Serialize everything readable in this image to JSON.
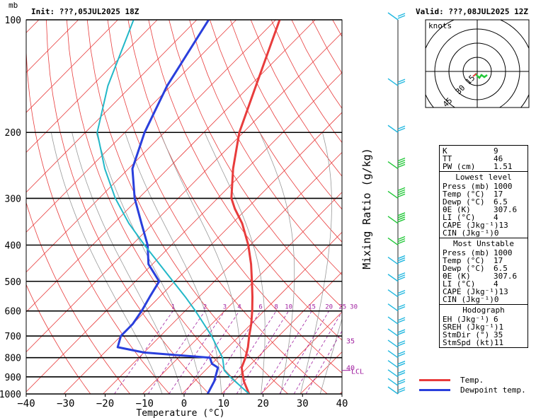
{
  "header": {
    "unit": "mb",
    "init": "Init: ???,05JUL2025 18Z",
    "valid": "Valid: ???,08JUL2025 12Z"
  },
  "colors": {
    "temperature": "#e83c3c",
    "dewpoint": "#2a3fdc",
    "parcel": "#22b8c8",
    "isotherm": "#e83c3c",
    "dry_adiabat": "#e83c3c",
    "moist_adiabat": "#999999",
    "mixing_ratio": "#a020a0",
    "winds": "#22b8e0",
    "winds_green": "#22c838"
  },
  "chart_data": {
    "type": "line",
    "xlabel": "Temperature (°C)",
    "ylabel": "",
    "right_label": "Mixing Ratio (g/kg)",
    "xlim": [
      -40,
      40
    ],
    "x_ticks": [
      -40,
      -30,
      -20,
      -10,
      0,
      10,
      20,
      30,
      40
    ],
    "x_tick_labels": [
      "−40",
      "−30",
      "−20",
      "−10",
      "0",
      "10",
      "20",
      "30",
      "40"
    ],
    "y_scale": "log",
    "ylim": [
      1000,
      100
    ],
    "pressure_ticks": [
      1000,
      900,
      800,
      700,
      600,
      500,
      400,
      300,
      200,
      100
    ],
    "pressure_labels": [
      "1000",
      "900",
      "800",
      "700",
      "600",
      "500",
      "400",
      "300",
      "200",
      "100"
    ],
    "grid": true,
    "mixing_ratio_lines": [
      {
        "w": 1,
        "label": "1"
      },
      {
        "w": 2,
        "label": "2"
      },
      {
        "w": 3,
        "label": "3"
      },
      {
        "w": 4,
        "label": "4"
      },
      {
        "w": 6,
        "label": "6"
      },
      {
        "w": 8,
        "label": "8"
      },
      {
        "w": 10,
        "label": "10"
      },
      {
        "w": 15,
        "label": "15"
      },
      {
        "w": 20,
        "label": "20"
      },
      {
        "w": 25,
        "label": "25"
      },
      {
        "w": 30,
        "label": "30"
      }
    ],
    "right_axis_marks": [
      {
        "p": 720,
        "label": "35"
      },
      {
        "p": 850,
        "label": "40"
      }
    ],
    "lcl": {
      "p": 865,
      "label": "LCL"
    },
    "series": [
      {
        "name": "Temp.",
        "key": "temperature",
        "p": [
          1000,
          925,
          850,
          800,
          750,
          700,
          650,
          600,
          550,
          500,
          450,
          400,
          350,
          320,
          300,
          250,
          200,
          150,
          100
        ],
        "t": [
          17,
          12.5,
          8.5,
          7.0,
          5.0,
          2.5,
          0,
          -3.0,
          -6.5,
          -10.5,
          -15,
          -20.5,
          -27.5,
          -33,
          -36.5,
          -43.5,
          -51,
          -58.5,
          -69
        ]
      },
      {
        "name": "Dewpoint temp.",
        "key": "dewpoint",
        "p": [
          1000,
          925,
          850,
          830,
          800,
          775,
          750,
          700,
          650,
          600,
          550,
          500,
          450,
          400,
          350,
          300,
          250,
          200,
          150,
          100
        ],
        "t": [
          6.5,
          5.0,
          2.5,
          0,
          -2.0,
          -20,
          -28,
          -30,
          -30,
          -31,
          -32.5,
          -34,
          -41,
          -46,
          -53,
          -61,
          -69,
          -75,
          -81,
          -87
        ]
      },
      {
        "name": "",
        "key": "parcel",
        "p": [
          1000,
          950,
          900,
          865,
          800,
          750,
          700,
          650,
          600,
          550,
          500,
          450,
          400,
          350,
          300,
          250,
          200,
          150,
          100
        ],
        "t": [
          17,
          12.6,
          7.9,
          4.8,
          1.2,
          -2.8,
          -7.0,
          -12.0,
          -17.4,
          -23.5,
          -30.5,
          -38.2,
          -46.8,
          -56.2,
          -65.9,
          -76,
          -87,
          -96,
          -106
        ]
      }
    ]
  },
  "hodograph": {
    "title": "knots",
    "ring_labels": [
      "15",
      "30",
      "45"
    ]
  },
  "stats": {
    "indices": [
      {
        "label": "K",
        "value": "9"
      },
      {
        "label": "TT",
        "value": "46"
      },
      {
        "label": "PW (cm)",
        "value": "1.51"
      }
    ],
    "lowest_level": {
      "title": "Lowest level",
      "rows": [
        {
          "label": "Press (mb)",
          "value": "1000"
        },
        {
          "label": "Temp (°C)",
          "value": "17"
        },
        {
          "label": "Dewp (°C)",
          "value": "6.5"
        },
        {
          "label": "θE (K)",
          "value": "307.6"
        },
        {
          "label": "LI (°C)",
          "value": "4"
        },
        {
          "label": "CAPE (Jkg⁻¹)",
          "value": "13"
        },
        {
          "label": "CIN (Jkg⁻¹)",
          "value": "0"
        }
      ]
    },
    "most_unstable": {
      "title": "Most Unstable",
      "rows": [
        {
          "label": "Press (mb)",
          "value": "1000"
        },
        {
          "label": "Temp (°C)",
          "value": "17"
        },
        {
          "label": "Dewp (°C)",
          "value": "6.5"
        },
        {
          "label": "θE (K)",
          "value": "307.6"
        },
        {
          "label": "LI (°C)",
          "value": "4"
        },
        {
          "label": "CAPE (Jkg⁻¹)",
          "value": "13"
        },
        {
          "label": "CIN (Jkg⁻¹)",
          "value": "0"
        }
      ]
    },
    "hodograph": {
      "title": "Hodograph",
      "rows": [
        {
          "label": "EH (Jkg⁻¹)",
          "value": "6"
        },
        {
          "label": "SREH (Jkg⁻¹)",
          "value": "1"
        },
        {
          "label": "StmDir (°)",
          "value": "35"
        },
        {
          "label": "StmSpd (kt)",
          "value": "11"
        }
      ]
    }
  },
  "legend": [
    {
      "label": "Temp.",
      "color": "#e83c3c"
    },
    {
      "label": "Dewpoint temp.",
      "color": "#2a3fdc"
    }
  ]
}
